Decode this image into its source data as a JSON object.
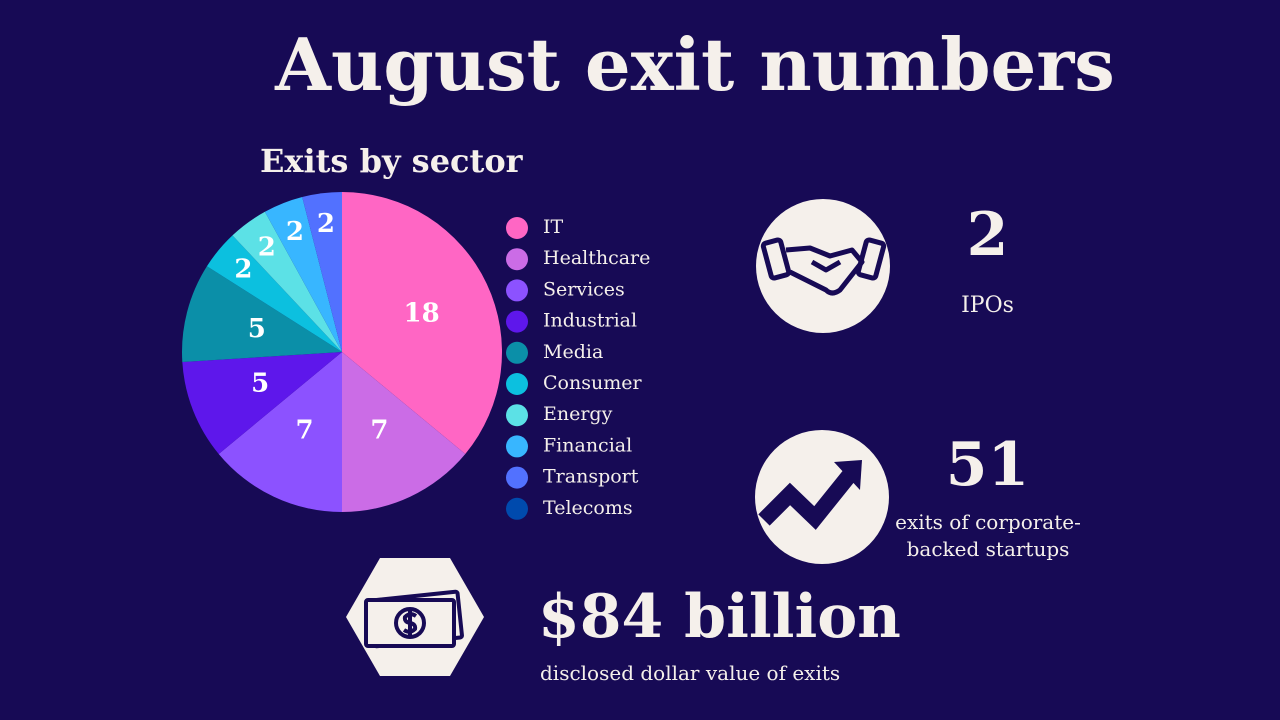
{
  "chart_data": {
    "type": "pie",
    "title": "August exit numbers",
    "subtitle": "Exits by sector",
    "categories": [
      "IT",
      "Healthcare",
      "Services",
      "Industrial",
      "Media",
      "Consumer",
      "Energy",
      "Financial",
      "Transport",
      "Telecoms"
    ],
    "values": [
      18,
      7,
      7,
      5,
      5,
      2,
      2,
      2,
      2,
      0
    ],
    "colors": [
      "#ff66c4",
      "#cb6ce6",
      "#8c52ff",
      "#5e17eb",
      "#0b8fa8",
      "#0cc0df",
      "#5ce1e6",
      "#38b6ff",
      "#5271ff",
      "#004aad"
    ]
  },
  "stats": [
    {
      "value": 2,
      "label": "IPOs"
    },
    {
      "value": 51,
      "label": "exits of corporate-backed startups"
    },
    {
      "value": "$84 billion",
      "label": "disclosed dollar value of exits"
    }
  ]
}
